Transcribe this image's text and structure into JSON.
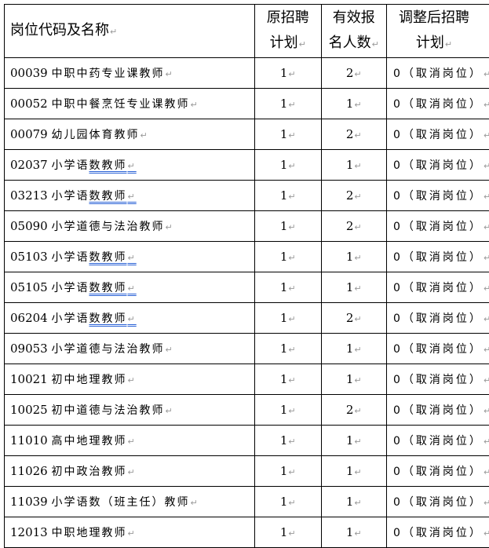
{
  "headers": {
    "col1": "岗位代码及名称",
    "col2_line1": "原招聘",
    "col2_line2": "计划",
    "col3_line1": "有效报",
    "col3_line2": "名人数",
    "col4_line1": "调整后招聘",
    "col4_line2": "计划"
  },
  "rows": [
    {
      "code": "00039",
      "name": "中职中药专业课教师",
      "name_underlined": "",
      "plan": "1",
      "applicants": "2",
      "adjusted": "0（取消岗位）"
    },
    {
      "code": "00052",
      "name": "中职中餐烹饪专业课教师",
      "name_underlined": "",
      "plan": "1",
      "applicants": "1",
      "adjusted": "0（取消岗位）"
    },
    {
      "code": "00079",
      "name": "幼儿园体育教师",
      "name_underlined": "",
      "plan": "1",
      "applicants": "2",
      "adjusted": "0（取消岗位）"
    },
    {
      "code": "02037",
      "name": "小学语",
      "name_underlined": "数教师",
      "plan": "1",
      "applicants": "1",
      "adjusted": "0（取消岗位）"
    },
    {
      "code": "03213",
      "name": "小学语",
      "name_underlined": "数教师",
      "plan": "1",
      "applicants": "2",
      "adjusted": "0（取消岗位）"
    },
    {
      "code": "05090",
      "name": "小学道德与法治教师",
      "name_underlined": "",
      "plan": "1",
      "applicants": "2",
      "adjusted": "0（取消岗位）"
    },
    {
      "code": "05103",
      "name": "小学语",
      "name_underlined": "数教师",
      "plan": "1",
      "applicants": "1",
      "adjusted": "0（取消岗位）"
    },
    {
      "code": "05105",
      "name": "小学语",
      "name_underlined": "数教师",
      "plan": "1",
      "applicants": "1",
      "adjusted": "0（取消岗位）"
    },
    {
      "code": "06204",
      "name": "小学语",
      "name_underlined": "数教师",
      "plan": "1",
      "applicants": "2",
      "adjusted": "0（取消岗位）"
    },
    {
      "code": "09053",
      "name": "小学道德与法治教师",
      "name_underlined": "",
      "plan": "1",
      "applicants": "1",
      "adjusted": "0（取消岗位）"
    },
    {
      "code": "10021",
      "name": "初中地理教师",
      "name_underlined": "",
      "plan": "1",
      "applicants": "1",
      "adjusted": "0（取消岗位）"
    },
    {
      "code": "10025",
      "name": "初中道德与法治教师",
      "name_underlined": "",
      "plan": "1",
      "applicants": "2",
      "adjusted": "0（取消岗位）"
    },
    {
      "code": "11010",
      "name": "高中地理教师",
      "name_underlined": "",
      "plan": "1",
      "applicants": "1",
      "adjusted": "0（取消岗位）"
    },
    {
      "code": "11026",
      "name": "初中政治教师",
      "name_underlined": "",
      "plan": "1",
      "applicants": "1",
      "adjusted": "0（取消岗位）"
    },
    {
      "code": "11039",
      "name": "小学语数（班主任）教师",
      "name_underlined": "",
      "plan": "1",
      "applicants": "1",
      "adjusted": "0（取消岗位）"
    },
    {
      "code": "12013",
      "name": "中职地理教师",
      "name_underlined": "",
      "plan": "1",
      "applicants": "1",
      "adjusted": "0（取消岗位）"
    }
  ],
  "colors": {
    "underline": "#2a62d6",
    "paragraph_mark": "#999999"
  }
}
